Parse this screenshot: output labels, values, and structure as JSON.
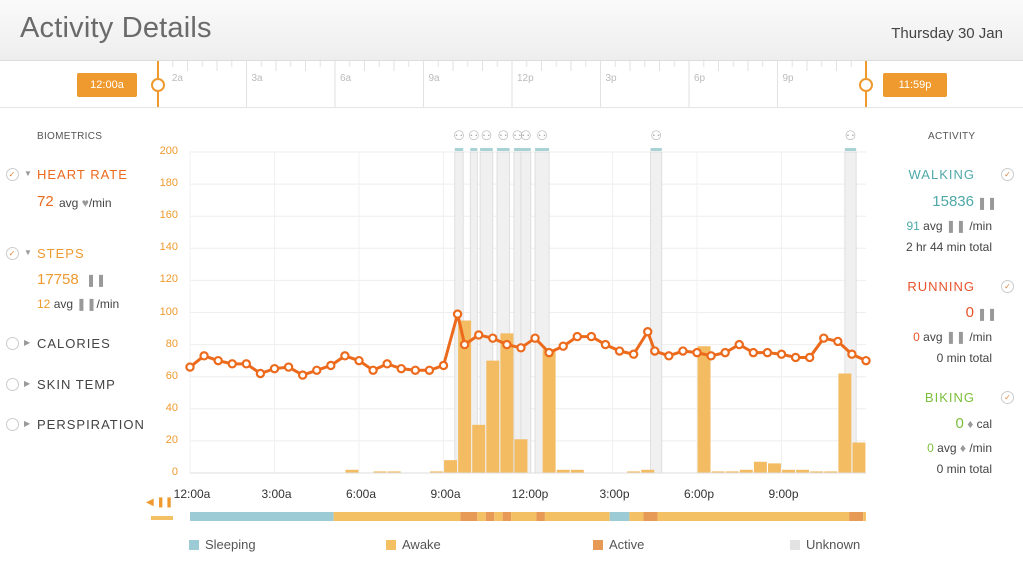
{
  "header": {
    "title": "Activity Details",
    "date": "Thursday 30 Jan"
  },
  "timeline": {
    "start_label": "12:00a",
    "end_label": "11:59p",
    "hour_labels": [
      "2a",
      "3a",
      "6a",
      "9a",
      "12p",
      "3p",
      "6p",
      "9p"
    ]
  },
  "biometrics": {
    "heading": "BIOMETRICS",
    "heart_rate": {
      "label": "HEART RATE",
      "value": "72",
      "avg_text": "avg",
      "unit_text": "/min"
    },
    "steps": {
      "label": "STEPS",
      "value": "17758",
      "avg_value": "12",
      "avg_text": "avg",
      "unit_text": "/min"
    },
    "calories": {
      "label": "CALORIES"
    },
    "skin_temp": {
      "label": "SKIN TEMP"
    },
    "perspiration": {
      "label": "PERSPIRATION"
    }
  },
  "activity": {
    "heading": "ACTIVITY",
    "walking": {
      "label": "WALKING",
      "value": "15836",
      "avg_value": "91",
      "avg_text": "avg",
      "unit_text": "/min",
      "total": "2 hr 44 min total"
    },
    "running": {
      "label": "RUNNING",
      "value": "0",
      "avg_value": "0",
      "avg_text": "avg",
      "unit_text": "/min",
      "total": "0 min total"
    },
    "biking": {
      "label": "BIKING",
      "value": "0",
      "value_unit": "cal",
      "avg_value": "0",
      "avg_text": "avg",
      "unit_text": "/min",
      "total": "0 min total"
    }
  },
  "colors": {
    "heart": "#ec6a1c",
    "steps": "#ee9a2e",
    "walking": "#4fa9a8",
    "running": "#e8532b",
    "biking": "#7cbf3c",
    "bar": "#f3bb62",
    "sleeping": "#9ccbd6",
    "awake": "#f4c064",
    "active": "#e79a55",
    "unknown": "#e3e3e3"
  },
  "legend": [
    {
      "label": "Sleeping",
      "color": "#9ccbd6"
    },
    {
      "label": "Awake",
      "color": "#f4c064"
    },
    {
      "label": "Active",
      "color": "#e79a55"
    },
    {
      "label": "Unknown",
      "color": "#e3e3e3"
    }
  ],
  "chart_data": {
    "type": "bar",
    "x_unit": "hours since 12:00a",
    "x_tick_labels": [
      "12:00a",
      "3:00a",
      "6:00a",
      "9:00a",
      "12:00p",
      "3:00p",
      "6:00p",
      "9:00p"
    ],
    "x_tick_hours": [
      0,
      3,
      6,
      9,
      12,
      15,
      18,
      21
    ],
    "y_ticks": [
      0,
      20,
      40,
      60,
      80,
      100,
      120,
      140,
      160,
      180,
      200
    ],
    "ylim": [
      0,
      200
    ],
    "xlim": [
      0,
      24
    ],
    "steps_bars": {
      "hours": [
        5.75,
        6.75,
        7.25,
        8.75,
        9.25,
        9.75,
        10.25,
        10.75,
        11.25,
        11.75,
        12.75,
        13.25,
        13.75,
        15.75,
        16.25,
        18.25,
        18.75,
        19.25,
        19.75,
        20.25,
        20.75,
        21.25,
        21.75,
        22.25,
        22.75,
        23.25,
        23.75
      ],
      "values": [
        2,
        1,
        1,
        1,
        8,
        95,
        30,
        70,
        87,
        21,
        77,
        2,
        2,
        1,
        2,
        79,
        1,
        1,
        2,
        7,
        6,
        2,
        2,
        1,
        1,
        62,
        19
      ]
    },
    "heart_rate_line": {
      "hours": [
        0,
        0.5,
        1,
        1.5,
        2,
        2.5,
        3,
        3.5,
        4,
        4.5,
        5,
        5.5,
        6,
        6.5,
        7,
        7.5,
        8,
        8.5,
        9,
        9.5,
        9.75,
        10.25,
        10.75,
        11.25,
        11.75,
        12.25,
        12.75,
        13.25,
        13.75,
        14.25,
        14.75,
        15.25,
        15.75,
        16.25,
        16.5,
        17,
        17.5,
        18,
        18.5,
        19,
        19.5,
        20,
        20.5,
        21,
        21.5,
        22,
        22.5,
        23,
        23.5,
        24
      ],
      "values": [
        66,
        73,
        70,
        68,
        68,
        62,
        65,
        66,
        61,
        64,
        67,
        73,
        70,
        64,
        68,
        65,
        64,
        64,
        67,
        99,
        80,
        86,
        84,
        80,
        78,
        84,
        75,
        79,
        85,
        85,
        80,
        76,
        74,
        88,
        76,
        73,
        76,
        75,
        73,
        75,
        80,
        75,
        75,
        74,
        72,
        72,
        84,
        82,
        74,
        70
      ]
    },
    "walking_segments": [
      [
        9.4,
        9.7
      ],
      [
        9.95,
        10.2
      ],
      [
        10.3,
        10.75
      ],
      [
        10.9,
        11.35
      ],
      [
        11.5,
        11.75
      ],
      [
        11.75,
        12.1
      ],
      [
        12.25,
        12.75
      ],
      [
        16.35,
        16.75
      ],
      [
        23.25,
        23.65
      ]
    ],
    "state_strip": [
      {
        "state": "sleeping",
        "start": 0,
        "end": 5.1
      },
      {
        "state": "awake",
        "start": 5.1,
        "end": 9.6
      },
      {
        "state": "active",
        "start": 9.6,
        "end": 10.2
      },
      {
        "state": "awake",
        "start": 10.2,
        "end": 10.5
      },
      {
        "state": "active",
        "start": 10.5,
        "end": 10.8
      },
      {
        "state": "awake",
        "start": 10.8,
        "end": 11.1
      },
      {
        "state": "active",
        "start": 11.1,
        "end": 11.4
      },
      {
        "state": "awake",
        "start": 11.4,
        "end": 12.3
      },
      {
        "state": "active",
        "start": 12.3,
        "end": 12.6
      },
      {
        "state": "awake",
        "start": 12.6,
        "end": 14.9
      },
      {
        "state": "sleeping",
        "start": 14.9,
        "end": 15.6
      },
      {
        "state": "awake",
        "start": 15.6,
        "end": 16.1
      },
      {
        "state": "active",
        "start": 16.1,
        "end": 16.6
      },
      {
        "state": "awake",
        "start": 16.6,
        "end": 21.3
      },
      {
        "state": "awake",
        "start": 21.3,
        "end": 23.4
      },
      {
        "state": "active",
        "start": 23.4,
        "end": 23.9
      },
      {
        "state": "awake",
        "start": 23.9,
        "end": 24
      }
    ]
  }
}
